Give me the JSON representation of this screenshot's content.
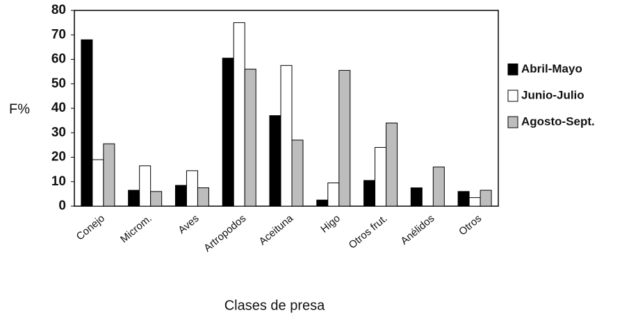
{
  "chart_data": {
    "type": "bar",
    "xlabel": "Clases de presa",
    "ylabel": "F%",
    "categories": [
      "Conejo",
      "Microm.",
      "Aves",
      "Artropodos",
      "Aceituna",
      "Higo",
      "Otros frut.",
      "Anélidos",
      "Otros"
    ],
    "series": [
      {
        "name": "Abril-Mayo",
        "color": "#000000",
        "values": [
          68,
          6.5,
          8.5,
          60.5,
          37,
          2.5,
          10.5,
          7.5,
          6
        ]
      },
      {
        "name": "Junio-Julio",
        "color": "#ffffff",
        "values": [
          19,
          16.5,
          14.5,
          75,
          57.5,
          9.5,
          24,
          0,
          3.5
        ]
      },
      {
        "name": "Agosto-Sept.",
        "color": "#bdbdbd",
        "values": [
          25.5,
          6,
          7.5,
          56,
          27,
          55.5,
          34,
          16,
          6.5
        ]
      }
    ],
    "ylim": [
      0,
      80
    ],
    "yticks": [
      0,
      10,
      20,
      30,
      40,
      50,
      60,
      70,
      80
    ],
    "grid": false,
    "legend": "right"
  }
}
